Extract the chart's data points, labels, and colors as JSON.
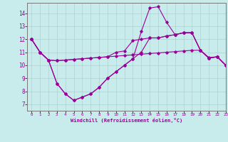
{
  "xlabel": "Windchill (Refroidissement éolien,°C)",
  "background_color": "#c8ecec",
  "line_color": "#990099",
  "grid_color": "#b0d0d0",
  "xlim": [
    -0.5,
    23
  ],
  "ylim": [
    6.5,
    14.8
  ],
  "xticks": [
    0,
    1,
    2,
    3,
    4,
    5,
    6,
    7,
    8,
    9,
    10,
    11,
    12,
    13,
    14,
    15,
    16,
    17,
    18,
    19,
    20,
    21,
    22,
    23
  ],
  "yticks": [
    7,
    8,
    9,
    10,
    11,
    12,
    13,
    14
  ],
  "line1": [
    12.0,
    11.0,
    10.4,
    10.35,
    10.4,
    10.45,
    10.5,
    10.55,
    10.6,
    10.65,
    10.7,
    10.75,
    10.8,
    10.85,
    10.9,
    10.95,
    11.0,
    11.05,
    11.1,
    11.15,
    11.15,
    10.6,
    10.65,
    10.0
  ],
  "line2": [
    12.0,
    11.0,
    10.4,
    10.35,
    10.4,
    10.45,
    10.5,
    10.55,
    10.6,
    10.65,
    11.0,
    11.1,
    11.9,
    12.0,
    12.1,
    12.1,
    12.25,
    12.35,
    12.5,
    12.5,
    11.15,
    10.55,
    10.65,
    10.0
  ],
  "line3": [
    12.0,
    11.0,
    10.4,
    8.6,
    7.8,
    7.3,
    7.55,
    7.8,
    8.3,
    9.0,
    9.5,
    10.0,
    10.5,
    11.0,
    12.1,
    12.1,
    12.25,
    12.35,
    12.5,
    12.5,
    11.15,
    10.55,
    10.65,
    10.0
  ],
  "line4": [
    12.0,
    11.0,
    10.4,
    8.6,
    7.8,
    7.3,
    7.55,
    7.8,
    8.3,
    9.0,
    9.5,
    10.0,
    10.5,
    12.6,
    14.4,
    14.5,
    13.3,
    12.35,
    12.5,
    12.5,
    11.15,
    10.55,
    10.65,
    10.0
  ]
}
